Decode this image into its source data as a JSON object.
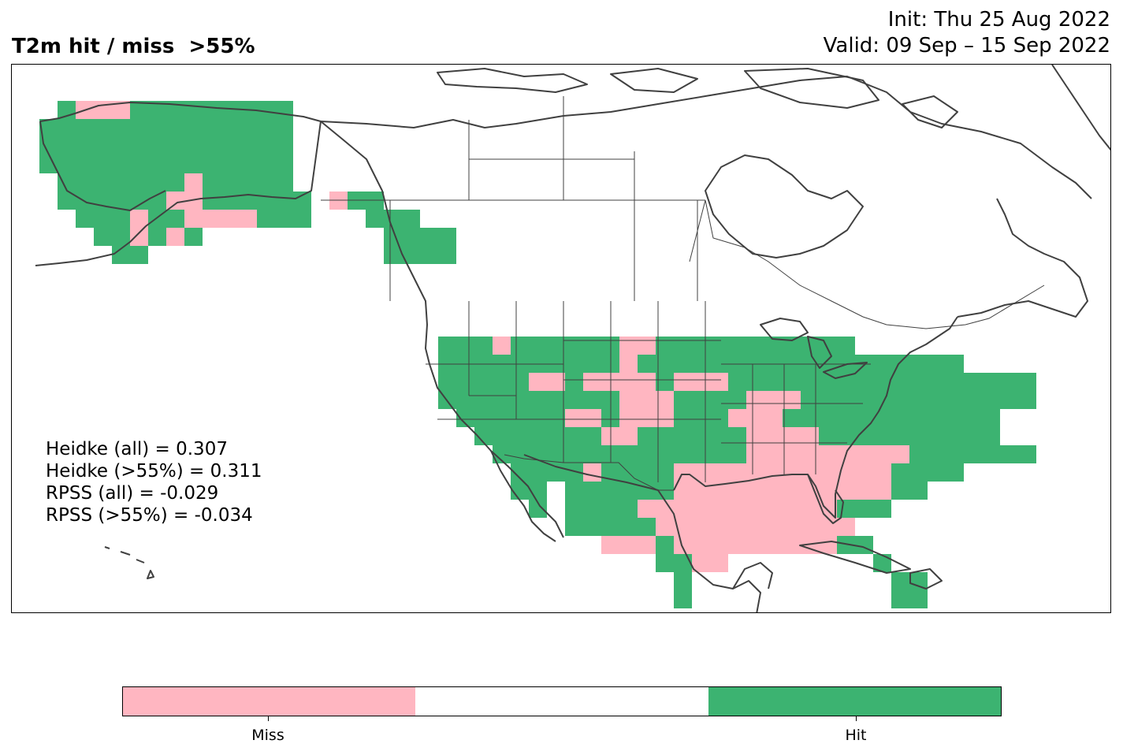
{
  "header": {
    "title": "T2m hit / miss  >55%",
    "init": "Init: Thu 25 Aug 2022",
    "valid": "Valid: 09 Sep – 15 Sep 2022"
  },
  "colors": {
    "hit": "#3cb371",
    "miss": "#ffb6c1",
    "neutral": "#ffffff",
    "coastline": "#404040"
  },
  "stats": [
    "Heidke (all) = 0.307",
    "Heidke (>55%) = 0.311",
    "RPSS (all) = -0.029",
    "RPSS (>55%) = -0.034"
  ],
  "colorbar": {
    "segments": [
      "miss",
      "neutral",
      "hit"
    ],
    "labels": [
      "Miss",
      "Hit"
    ]
  },
  "map_data": {
    "region": "North America",
    "legend": {
      "miss": "Miss",
      "hit": "Hit"
    }
  }
}
